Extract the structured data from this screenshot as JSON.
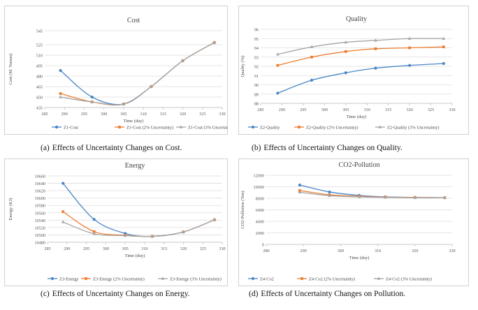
{
  "captions": [
    {
      "label": "(a)",
      "text": "Effects of  Uncertainty  Changes on Cost."
    },
    {
      "label": "(b)",
      "text": "Effects of Uncertainty Changes on Quality."
    },
    {
      "label": "(c)",
      "text": "Effects of Uncertainty Changes on Energy."
    },
    {
      "label": "(d)",
      "text": "Effects of Uncertainty Changes on Pollution."
    }
  ],
  "colors": {
    "base": "#4a86c8",
    "two": "#ed7d31",
    "three": "#a5a5a5"
  },
  "chart_data": [
    {
      "type": "line",
      "title": "Cost",
      "xlabel": "Time (day)",
      "ylabel": "Cost (M. Toman)",
      "xlim": [
        285,
        330
      ],
      "ylim": [
        435,
        545
      ],
      "xticks": [
        285,
        290,
        295,
        300,
        305,
        310,
        315,
        320,
        325,
        330
      ],
      "yticks": [
        435,
        450,
        465,
        480,
        495,
        510,
        525,
        545
      ],
      "ytick_labels": [
        "435",
        "450",
        "465",
        "480",
        "495",
        "510",
        "525",
        "545"
      ],
      "grid": true,
      "legend_position": "bottom",
      "x": [
        289,
        297,
        305,
        312,
        320,
        328
      ],
      "series": [
        {
          "name": "Z1-Cost",
          "color": "base",
          "values": [
            488,
            450,
            440,
            465,
            502,
            528
          ]
        },
        {
          "name": "Z1-Cost (2% Uncertainty)",
          "color": "two",
          "values": [
            455,
            443,
            440,
            465,
            502,
            528
          ]
        },
        {
          "name": "Z1-Cost (3% Uncertainty)",
          "color": "three",
          "values": [
            450,
            443,
            440,
            465,
            502,
            528
          ]
        }
      ]
    },
    {
      "type": "line",
      "title": "Quality",
      "xlabel": "Time (day)",
      "ylabel": "Quality (%)",
      "xlim": [
        285,
        330
      ],
      "ylim": [
        88,
        96
      ],
      "xticks": [
        285,
        290,
        295,
        300,
        305,
        310,
        315,
        320,
        325,
        330
      ],
      "yticks": [
        88,
        89,
        90,
        91,
        92,
        93,
        94,
        95,
        96
      ],
      "ytick_labels": [
        "88",
        "89",
        "90",
        "91",
        "92",
        "93",
        "94",
        "95",
        "96"
      ],
      "grid": true,
      "legend_position": "bottom",
      "x": [
        289,
        297,
        305,
        312,
        320,
        328
      ],
      "series": [
        {
          "name": "Z2-Quality",
          "color": "base",
          "values": [
            89.1,
            90.5,
            91.3,
            91.8,
            92.1,
            92.3
          ]
        },
        {
          "name": "Z2-Quality (2% Uncertainty)",
          "color": "two",
          "values": [
            92.1,
            93.0,
            93.6,
            93.9,
            94.0,
            94.1
          ]
        },
        {
          "name": "Z2-Quality (3% Uncertainty)",
          "color": "three",
          "values": [
            93.3,
            94.1,
            94.6,
            94.8,
            95.0,
            95.0
          ]
        }
      ]
    },
    {
      "type": "line",
      "title": "Energy",
      "xlabel": "Time (day)",
      "ylabel": "Energy (KJ)",
      "xlim": [
        285,
        330
      ],
      "ylim": [
        10480,
        10660
      ],
      "xticks": [
        285,
        290,
        295,
        300,
        305,
        310,
        315,
        320,
        325,
        330
      ],
      "yticks": [
        10480,
        10500,
        10520,
        10540,
        10560,
        10580,
        10600,
        10620,
        10640,
        10660
      ],
      "ytick_labels": [
        "10480",
        "10500",
        "10520",
        "10540",
        "10560",
        "10580",
        "10600",
        "10620",
        "10640",
        "10660"
      ],
      "grid": true,
      "legend_position": "bottom",
      "x": [
        289,
        297,
        305,
        312,
        320,
        328
      ],
      "series": [
        {
          "name": "Z3-Energy",
          "color": "base",
          "values": [
            10640,
            10542,
            10504,
            10496,
            10508,
            10541
          ]
        },
        {
          "name": "Z3-Energy (2% Uncertainty)",
          "color": "two",
          "values": [
            10563,
            10509,
            10499,
            10496,
            10508,
            10541
          ]
        },
        {
          "name": "Z3-Energy (3% Uncertainty)",
          "color": "three",
          "values": [
            10535,
            10503,
            10498,
            10496,
            10508,
            10541
          ]
        }
      ]
    },
    {
      "type": "line",
      "title": "CO2-Pollution",
      "xlabel": "Time (day)",
      "ylabel": "CO2-Pollution (Ton)",
      "xlim": [
        280,
        330
      ],
      "ylim": [
        0,
        12000
      ],
      "xticks": [
        280,
        290,
        300,
        310,
        320,
        330
      ],
      "yticks": [
        0,
        2000,
        4000,
        6000,
        8000,
        10000,
        12000
      ],
      "ytick_labels": [
        "0",
        "2000",
        "4000",
        "6000",
        "8000",
        "10000",
        "12000"
      ],
      "grid": true,
      "legend_position": "bottom",
      "x": [
        289,
        297,
        305,
        312,
        320,
        328
      ],
      "series": [
        {
          "name": "Z4-Co2",
          "color": "base",
          "values": [
            10300,
            9100,
            8500,
            8250,
            8150,
            8100
          ]
        },
        {
          "name": "Z4-Co2 (2% Uncertainty)",
          "color": "two",
          "values": [
            9350,
            8600,
            8350,
            8200,
            8150,
            8100
          ]
        },
        {
          "name": "Z4-Co2 (3% Uncertainty)",
          "color": "three",
          "values": [
            9050,
            8450,
            8250,
            8150,
            8100,
            8100
          ]
        }
      ]
    }
  ]
}
